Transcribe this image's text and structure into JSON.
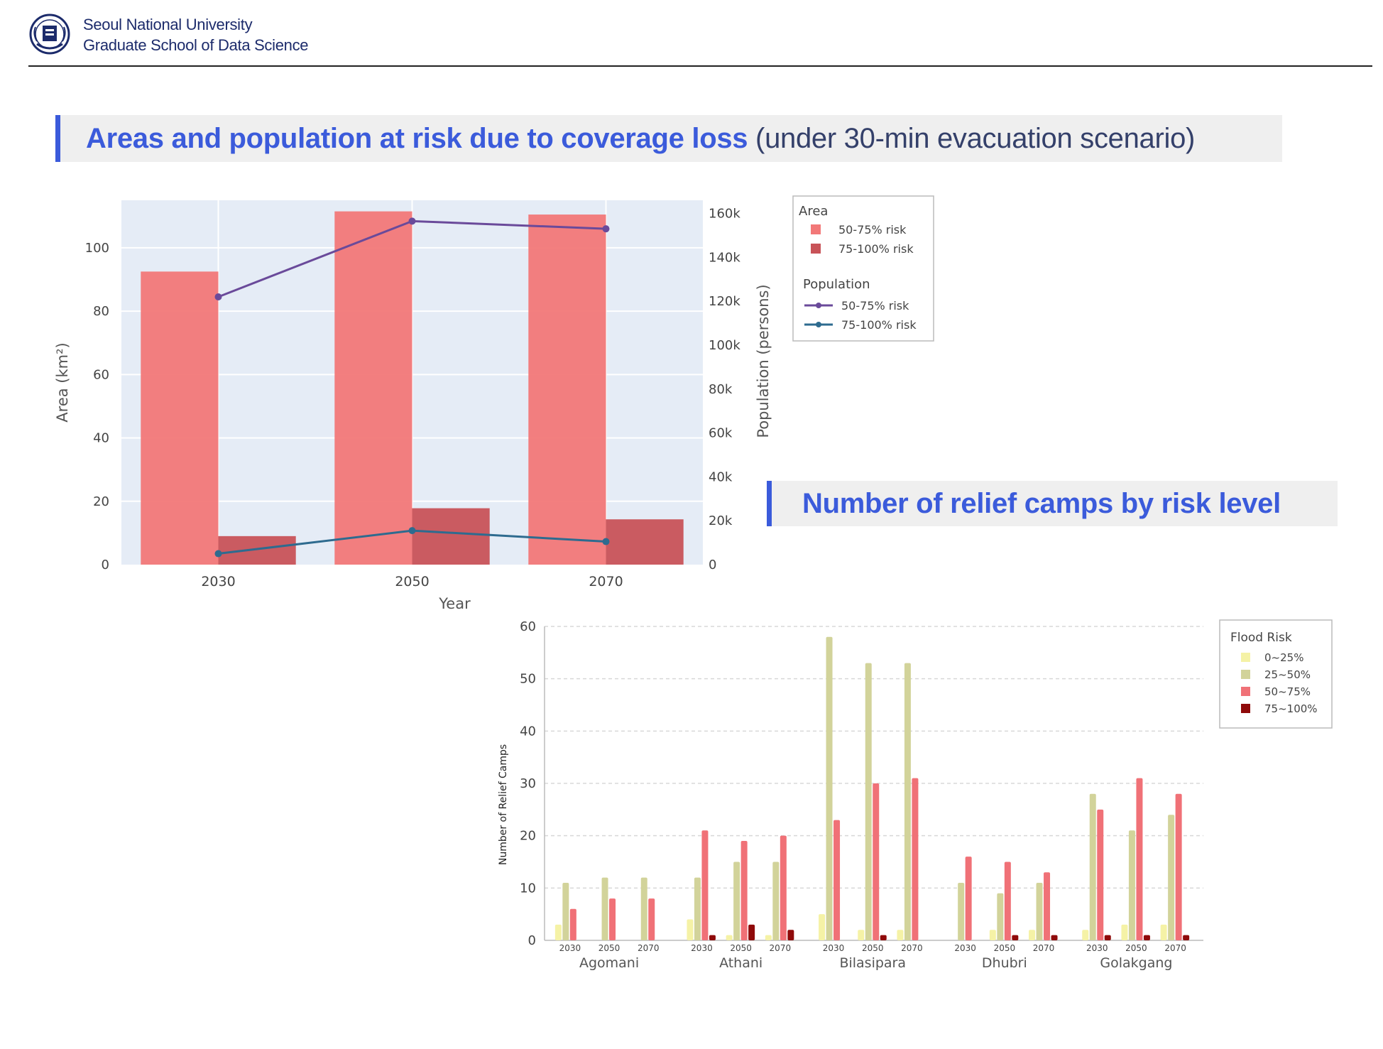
{
  "header": {
    "university": "Seoul National University",
    "school": "Graduate School of Data Science"
  },
  "section1": {
    "title_main": "Areas and population at risk due to coverage loss",
    "title_sub": "(under 30-min evacuation scenario)"
  },
  "section2": {
    "title": "Number of relief camps by risk level"
  },
  "colors": {
    "accent": "#3b5bdb",
    "area_50_75": "#f27878",
    "area_75_100": "#c85358",
    "pop_50_75": "#6a4a9a",
    "pop_75_100": "#2e6b8f",
    "camps_0_25": "#f5f2a6",
    "camps_25_50": "#d2d39a",
    "camps_50_75": "#f07177",
    "camps_75_100": "#8f0a0a"
  },
  "chart_data": [
    {
      "type": "bar",
      "subtype": "bar+line (dual axis)",
      "categories": [
        "2030",
        "2050",
        "2070"
      ],
      "xlabel": "Year",
      "ylabel": "Area (km²)",
      "y2label": "Population (persons)",
      "ylim": [
        0,
        115
      ],
      "y2lim": [
        0,
        166000
      ],
      "yticks": [
        "0",
        "20",
        "40",
        "60",
        "80",
        "100"
      ],
      "y2ticks": [
        "0",
        "20k",
        "40k",
        "60k",
        "80k",
        "100k",
        "120k",
        "140k",
        "160k"
      ],
      "grid": true,
      "legend_position": "right",
      "legend": {
        "group1_title": "Area",
        "group2_title": "Population",
        "item1": "50-75% risk",
        "item2": "75-100% risk"
      },
      "bars": [
        {
          "name": "50-75% risk",
          "values": [
            92.5,
            111.5,
            110.5
          ]
        },
        {
          "name": "75-100% risk",
          "values": [
            9,
            17.8,
            14.3
          ]
        }
      ],
      "lines": [
        {
          "name": "50-75% risk",
          "values": [
            122000,
            156500,
            153000
          ]
        },
        {
          "name": "75-100% risk",
          "values": [
            5000,
            15500,
            10500
          ]
        }
      ]
    },
    {
      "type": "bar",
      "subtype": "grouped bar",
      "groups": [
        "Agomani",
        "Athani",
        "Bilasipara",
        "Dhubri",
        "Golakgang"
      ],
      "years": [
        "2030",
        "2050",
        "2070"
      ],
      "ylabel": "Number of Relief Camps",
      "xlabel": "",
      "ylim": [
        0,
        60
      ],
      "yticks": [
        "0",
        "10",
        "20",
        "30",
        "40",
        "50",
        "60"
      ],
      "grid": true,
      "legend_position": "top-right",
      "legend_title": "Flood Risk",
      "series": [
        {
          "name": "0~25%",
          "values": [
            [
              3,
              0,
              0
            ],
            [
              4,
              1,
              1
            ],
            [
              5,
              2,
              2
            ],
            [
              0,
              2,
              2
            ],
            [
              2,
              3,
              3
            ]
          ]
        },
        {
          "name": "25~50%",
          "values": [
            [
              11,
              12,
              12
            ],
            [
              12,
              15,
              15
            ],
            [
              58,
              53,
              53
            ],
            [
              11,
              9,
              11
            ],
            [
              28,
              21,
              24
            ]
          ]
        },
        {
          "name": "50~75%",
          "values": [
            [
              6,
              8,
              8
            ],
            [
              21,
              19,
              20
            ],
            [
              23,
              30,
              31
            ],
            [
              16,
              15,
              13
            ],
            [
              25,
              31,
              28
            ]
          ]
        },
        {
          "name": "75~100%",
          "values": [
            [
              0,
              0,
              0
            ],
            [
              1,
              3,
              2
            ],
            [
              0,
              1,
              0
            ],
            [
              0,
              1,
              1
            ],
            [
              1,
              1,
              1
            ]
          ]
        }
      ]
    }
  ]
}
